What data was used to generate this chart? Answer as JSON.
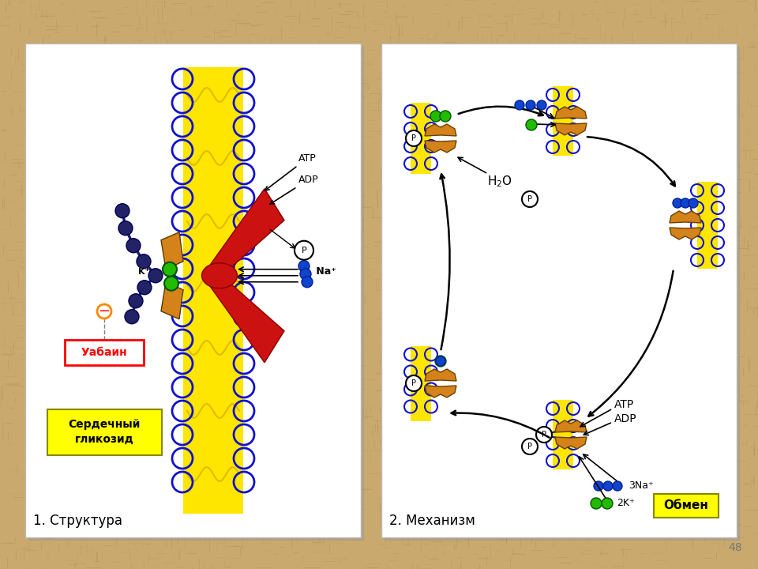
{
  "bg_color": "#C9A96E",
  "panel_bg": "#FFFFFF",
  "panel1": [
    32,
    55,
    425,
    625
  ],
  "panel2": [
    483,
    55,
    450,
    625
  ],
  "title1": "1. Структура",
  "title2": "2. Механизм",
  "label_uabain": "Уабаин",
  "label_cardiac": "Сердечный\nгликозид",
  "label_obmen": "Обмен",
  "label_h2o": "H₂O",
  "label_atp": "ATP",
  "label_adp": "ADP",
  "label_p": "P",
  "label_na": "Na⁺",
  "label_k": "K⁺",
  "label_3na": "3Na⁺",
  "label_2k": "2K⁺",
  "mem_yellow": "#FFE600",
  "mem_blue": "#1111CC",
  "pump_red": "#CC1111",
  "pump_orange": "#D4821A",
  "green_dot": "#22BB00",
  "blue_dot": "#1144CC",
  "dark_chain": "#222266",
  "text_color": "#000000",
  "page_num": "48",
  "shadow_color": "#999999"
}
